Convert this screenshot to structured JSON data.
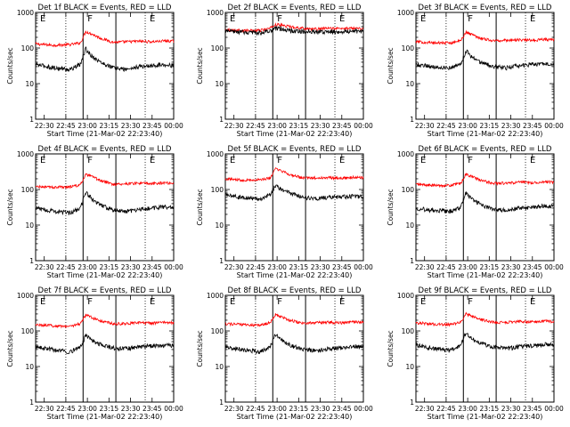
{
  "figure": {
    "x_tick_labels": [
      "22:30",
      "22:45",
      "23:00",
      "23:15",
      "23:30",
      "23:45",
      "00:00"
    ],
    "y_tick_labels": [
      "1",
      "10",
      "100",
      "1000"
    ],
    "ylabel": "Counts/sec",
    "xlabel": "Start Time (21-Mar-02 22:23:40)",
    "flag_labels": [
      "E",
      "F",
      "E"
    ]
  },
  "chart_data": [
    {
      "type": "line",
      "title": "Det 1f BLACK = Events, RED = LLD",
      "xlim": [
        22.4,
        24.0
      ],
      "ylim": [
        1,
        1000
      ],
      "ylog": true,
      "dotted_x": [
        22.75,
        23.67
      ],
      "solid_x": [
        22.95,
        23.33
      ],
      "series": [
        {
          "color": "#ff0000",
          "x": [
            22.4,
            22.6,
            22.8,
            22.92,
            22.98,
            23.05,
            23.15,
            23.3,
            23.45,
            23.6,
            23.75,
            23.9,
            24.0
          ],
          "values": [
            130,
            120,
            125,
            140,
            290,
            250,
            190,
            145,
            150,
            155,
            150,
            160,
            155
          ]
        },
        {
          "color": "#000000",
          "x": [
            22.4,
            22.6,
            22.8,
            22.92,
            22.98,
            23.05,
            23.15,
            23.3,
            23.45,
            23.6,
            23.75,
            23.9,
            24.0
          ],
          "values": [
            35,
            28,
            25,
            35,
            95,
            60,
            40,
            28,
            25,
            30,
            32,
            35,
            32
          ]
        }
      ]
    },
    {
      "type": "line",
      "title": "Det 2f BLACK = Events, RED = LLD",
      "xlim": [
        22.4,
        24.0
      ],
      "ylim": [
        1,
        1000
      ],
      "ylog": true,
      "dotted_x": [
        22.75,
        23.67
      ],
      "solid_x": [
        22.95,
        23.33
      ],
      "series": [
        {
          "color": "#ff0000",
          "x": [
            22.4,
            22.6,
            22.8,
            22.92,
            22.98,
            23.05,
            23.15,
            23.3,
            23.45,
            23.6,
            23.75,
            23.9,
            24.0
          ],
          "values": [
            330,
            310,
            310,
            360,
            460,
            440,
            400,
            360,
            340,
            360,
            350,
            370,
            350
          ]
        },
        {
          "color": "#000000",
          "x": [
            22.4,
            22.6,
            22.8,
            22.92,
            22.98,
            23.05,
            23.15,
            23.3,
            23.45,
            23.6,
            23.75,
            23.9,
            24.0
          ],
          "values": [
            300,
            280,
            270,
            300,
            350,
            340,
            310,
            290,
            280,
            290,
            290,
            300,
            290
          ]
        }
      ]
    },
    {
      "type": "line",
      "title": "Det 3f BLACK = Events, RED = LLD",
      "xlim": [
        22.4,
        24.0
      ],
      "ylim": [
        1,
        1000
      ],
      "ylog": true,
      "dotted_x": [
        22.75,
        23.67
      ],
      "solid_x": [
        22.95,
        23.33
      ],
      "series": [
        {
          "color": "#ff0000",
          "x": [
            22.4,
            22.6,
            22.8,
            22.92,
            22.98,
            23.05,
            23.15,
            23.3,
            23.45,
            23.6,
            23.75,
            23.9,
            24.0
          ],
          "values": [
            150,
            140,
            140,
            160,
            280,
            240,
            190,
            160,
            165,
            170,
            165,
            175,
            170
          ]
        },
        {
          "color": "#000000",
          "x": [
            22.4,
            22.6,
            22.8,
            22.92,
            22.98,
            23.05,
            23.15,
            23.3,
            23.45,
            23.6,
            23.75,
            23.9,
            24.0
          ],
          "values": [
            35,
            30,
            28,
            35,
            85,
            55,
            40,
            30,
            28,
            32,
            35,
            38,
            36
          ]
        }
      ]
    },
    {
      "type": "line",
      "title": "Det 4f BLACK = Events, RED = LLD",
      "xlim": [
        22.4,
        24.0
      ],
      "ylim": [
        1,
        1000
      ],
      "ylog": true,
      "dotted_x": [
        22.75,
        23.67
      ],
      "solid_x": [
        22.95,
        23.33
      ],
      "series": [
        {
          "color": "#ff0000",
          "x": [
            22.4,
            22.6,
            22.8,
            22.92,
            22.98,
            23.05,
            23.15,
            23.3,
            23.45,
            23.6,
            23.75,
            23.9,
            24.0
          ],
          "values": [
            120,
            115,
            120,
            135,
            260,
            230,
            180,
            140,
            145,
            150,
            145,
            155,
            150
          ]
        },
        {
          "color": "#000000",
          "x": [
            22.4,
            22.6,
            22.8,
            22.92,
            22.98,
            23.05,
            23.15,
            23.3,
            23.45,
            23.6,
            23.75,
            23.9,
            24.0
          ],
          "values": [
            30,
            25,
            22,
            30,
            85,
            55,
            38,
            26,
            24,
            28,
            30,
            33,
            30
          ]
        }
      ]
    },
    {
      "type": "line",
      "title": "Det 5f BLACK = Events, RED = LLD",
      "xlim": [
        22.4,
        24.0
      ],
      "ylim": [
        1,
        1000
      ],
      "ylog": true,
      "dotted_x": [
        22.75,
        23.67
      ],
      "solid_x": [
        22.95,
        23.33
      ],
      "series": [
        {
          "color": "#ff0000",
          "x": [
            22.4,
            22.6,
            22.8,
            22.92,
            22.98,
            23.05,
            23.15,
            23.3,
            23.45,
            23.6,
            23.75,
            23.9,
            24.0
          ],
          "values": [
            200,
            185,
            185,
            210,
            380,
            330,
            260,
            210,
            210,
            215,
            210,
            220,
            215
          ]
        },
        {
          "color": "#000000",
          "x": [
            22.4,
            22.6,
            22.8,
            22.92,
            22.98,
            23.05,
            23.15,
            23.3,
            23.45,
            23.6,
            23.75,
            23.9,
            24.0
          ],
          "values": [
            70,
            60,
            55,
            70,
            130,
            100,
            80,
            60,
            55,
            60,
            62,
            65,
            63
          ]
        }
      ]
    },
    {
      "type": "line",
      "title": "Det 6f BLACK = Events, RED = LLD",
      "xlim": [
        22.4,
        24.0
      ],
      "ylim": [
        1,
        1000
      ],
      "ylog": true,
      "dotted_x": [
        22.75,
        23.67
      ],
      "solid_x": [
        22.95,
        23.33
      ],
      "series": [
        {
          "color": "#ff0000",
          "x": [
            22.4,
            22.6,
            22.8,
            22.92,
            22.98,
            23.05,
            23.15,
            23.3,
            23.45,
            23.6,
            23.75,
            23.9,
            24.0
          ],
          "values": [
            140,
            130,
            130,
            150,
            270,
            230,
            180,
            150,
            150,
            160,
            155,
            165,
            160
          ]
        },
        {
          "color": "#000000",
          "x": [
            22.4,
            22.6,
            22.8,
            22.92,
            22.98,
            23.05,
            23.15,
            23.3,
            23.45,
            23.6,
            23.75,
            23.9,
            24.0
          ],
          "values": [
            30,
            26,
            24,
            32,
            80,
            52,
            38,
            27,
            26,
            30,
            32,
            35,
            33
          ]
        }
      ]
    },
    {
      "type": "line",
      "title": "Det 7f BLACK = Events, RED = LLD",
      "xlim": [
        22.4,
        24.0
      ],
      "ylim": [
        1,
        1000
      ],
      "ylog": true,
      "dotted_x": [
        22.75,
        23.67
      ],
      "solid_x": [
        22.95,
        23.33
      ],
      "series": [
        {
          "color": "#ff0000",
          "x": [
            22.4,
            22.6,
            22.8,
            22.92,
            22.98,
            23.05,
            23.15,
            23.3,
            23.45,
            23.6,
            23.75,
            23.9,
            24.0
          ],
          "values": [
            150,
            140,
            135,
            160,
            280,
            240,
            190,
            160,
            160,
            170,
            165,
            175,
            170
          ]
        },
        {
          "color": "#000000",
          "x": [
            22.4,
            22.6,
            22.8,
            22.92,
            22.98,
            23.05,
            23.15,
            23.3,
            23.45,
            23.6,
            23.75,
            23.9,
            24.0
          ],
          "values": [
            35,
            30,
            26,
            35,
            75,
            55,
            42,
            33,
            32,
            36,
            38,
            40,
            38
          ]
        }
      ]
    },
    {
      "type": "line",
      "title": "Det 8f BLACK = Events, RED = LLD",
      "xlim": [
        22.4,
        24.0
      ],
      "ylim": [
        1,
        1000
      ],
      "ylog": true,
      "dotted_x": [
        22.75,
        23.67
      ],
      "solid_x": [
        22.95,
        23.33
      ],
      "series": [
        {
          "color": "#ff0000",
          "x": [
            22.4,
            22.6,
            22.8,
            22.92,
            22.98,
            23.05,
            23.15,
            23.3,
            23.45,
            23.6,
            23.75,
            23.9,
            24.0
          ],
          "values": [
            160,
            150,
            145,
            170,
            290,
            250,
            200,
            165,
            170,
            175,
            170,
            180,
            175
          ]
        },
        {
          "color": "#000000",
          "x": [
            22.4,
            22.6,
            22.8,
            22.92,
            22.98,
            23.05,
            23.15,
            23.3,
            23.45,
            23.6,
            23.75,
            23.9,
            24.0
          ],
          "values": [
            35,
            30,
            26,
            35,
            80,
            55,
            40,
            30,
            28,
            32,
            34,
            37,
            35
          ]
        }
      ]
    },
    {
      "type": "line",
      "title": "Det 9f BLACK = Events, RED = LLD",
      "xlim": [
        22.4,
        24.0
      ],
      "ylim": [
        1,
        1000
      ],
      "ylog": true,
      "dotted_x": [
        22.75,
        23.67
      ],
      "solid_x": [
        22.95,
        23.33
      ],
      "series": [
        {
          "color": "#ff0000",
          "x": [
            22.4,
            22.6,
            22.8,
            22.92,
            22.98,
            23.05,
            23.15,
            23.3,
            23.45,
            23.6,
            23.75,
            23.9,
            24.0
          ],
          "values": [
            170,
            155,
            150,
            175,
            300,
            260,
            210,
            175,
            175,
            185,
            180,
            190,
            185
          ]
        },
        {
          "color": "#000000",
          "x": [
            22.4,
            22.6,
            22.8,
            22.92,
            22.98,
            23.05,
            23.15,
            23.3,
            23.45,
            23.6,
            23.75,
            23.9,
            24.0
          ],
          "values": [
            40,
            32,
            28,
            38,
            90,
            60,
            45,
            35,
            32,
            36,
            38,
            42,
            40
          ]
        }
      ]
    }
  ]
}
